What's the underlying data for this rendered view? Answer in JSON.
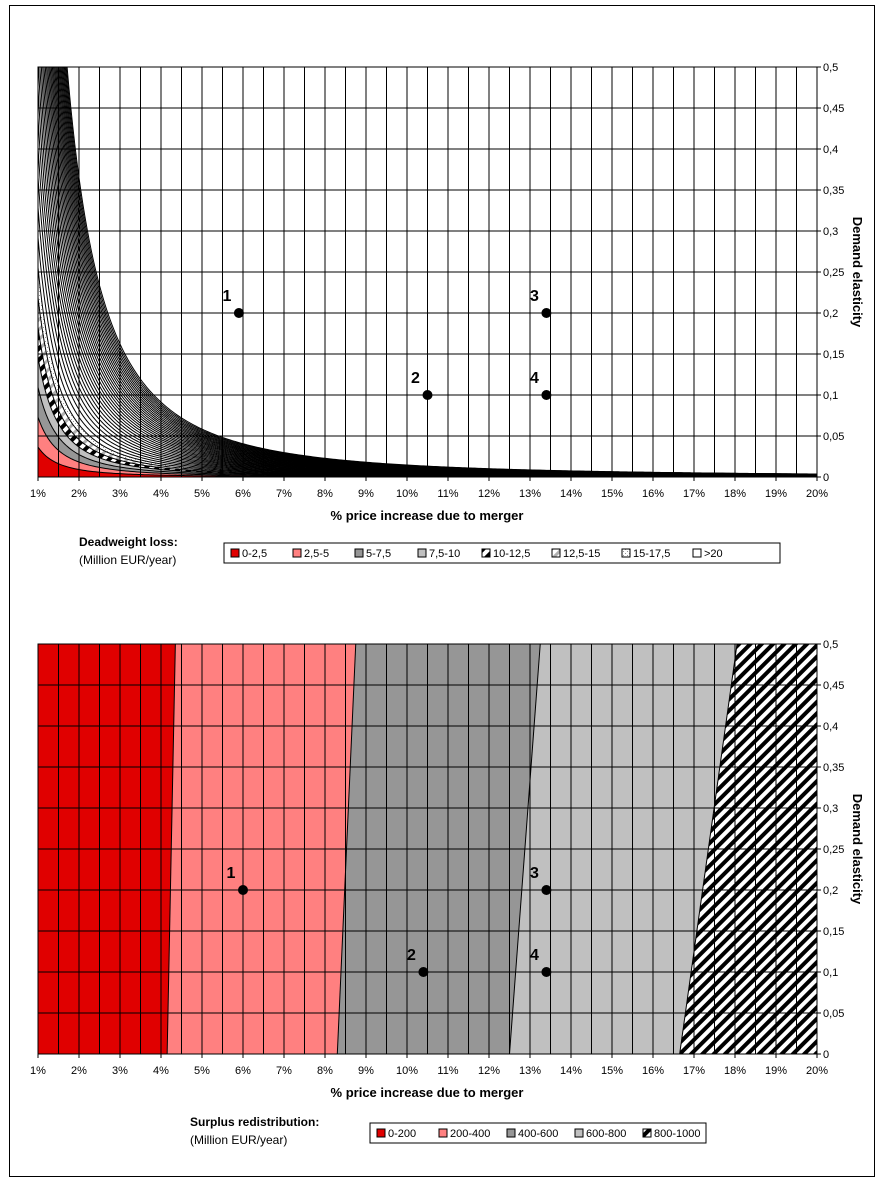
{
  "chart_data": [
    {
      "type": "heatmap",
      "title": "",
      "xlabel": "% price increase due to merger",
      "ylabel": "Demand elasticity",
      "x_ticks": [
        "1%",
        "2%",
        "3%",
        "4%",
        "5%",
        "6%",
        "7%",
        "8%",
        "9%",
        "10%",
        "11%",
        "12%",
        "13%",
        "14%",
        "15%",
        "16%",
        "17%",
        "18%",
        "19%",
        "20%"
      ],
      "y_ticks": [
        "0",
        "0,05",
        "0,1",
        "0,15",
        "0,2",
        "0,25",
        "0,3",
        "0,35",
        "0,4",
        "0,45",
        "0,5"
      ],
      "xlim": [
        1,
        20
      ],
      "ylim": [
        0,
        0.5
      ],
      "grid": true,
      "legend_title": "Deadweight loss:",
      "legend_subtitle": "(Million EUR/year)",
      "legend_position": "bottom",
      "legend": [
        "0-2,5",
        "2,5-5",
        "5-7,5",
        "7,5-10",
        "10-12,5",
        "12,5-15",
        "15-17,5",
        ">20"
      ],
      "level_step": 2.5,
      "k": 0.0146,
      "points": [
        {
          "label": "1",
          "x": 5.9,
          "y": 0.2
        },
        {
          "label": "2",
          "x": 10.5,
          "y": 0.1
        },
        {
          "label": "3",
          "x": 13.4,
          "y": 0.2
        },
        {
          "label": "4",
          "x": 13.4,
          "y": 0.1
        }
      ]
    },
    {
      "type": "heatmap",
      "title": "",
      "xlabel": "% price increase due to merger",
      "ylabel": "Demand elasticity",
      "x_ticks": [
        "1%",
        "2%",
        "3%",
        "4%",
        "5%",
        "6%",
        "7%",
        "8%",
        "9%",
        "10%",
        "11%",
        "12%",
        "13%",
        "14%",
        "15%",
        "16%",
        "17%",
        "18%",
        "19%",
        "20%"
      ],
      "y_ticks": [
        "0",
        "0,05",
        "0,1",
        "0,15",
        "0,2",
        "0,25",
        "0,3",
        "0,35",
        "0,4",
        "0,45",
        "0,5"
      ],
      "xlim": [
        1,
        20
      ],
      "ylim": [
        0,
        0.5
      ],
      "grid": true,
      "legend_title": "Surplus redistribution:",
      "legend_subtitle": "(Million EUR/year)",
      "legend_position": "bottom",
      "legend": [
        "0-200",
        "200-400",
        "400-600",
        "600-800",
        "800-1000"
      ],
      "boundaries": [
        {
          "level": 200,
          "x_at_0": 4.15,
          "x_at_05": 4.35
        },
        {
          "level": 400,
          "x_at_0": 8.3,
          "x_at_05": 8.75
        },
        {
          "level": 600,
          "x_at_0": 12.5,
          "x_at_05": 13.25
        },
        {
          "level": 800,
          "x_at_0": 16.65,
          "x_at_05": 18.05
        }
      ],
      "points": [
        {
          "label": "1",
          "x": 6.0,
          "y": 0.2
        },
        {
          "label": "2",
          "x": 10.4,
          "y": 0.1
        },
        {
          "label": "3",
          "x": 13.4,
          "y": 0.2
        },
        {
          "label": "4",
          "x": 13.4,
          "y": 0.1
        }
      ]
    }
  ],
  "colors": {
    "band_1": "#e00000",
    "band_2": "#ff8080",
    "band_3": "#969696",
    "band_4": "#c0c0c0",
    "band_5": "#ffffff"
  }
}
